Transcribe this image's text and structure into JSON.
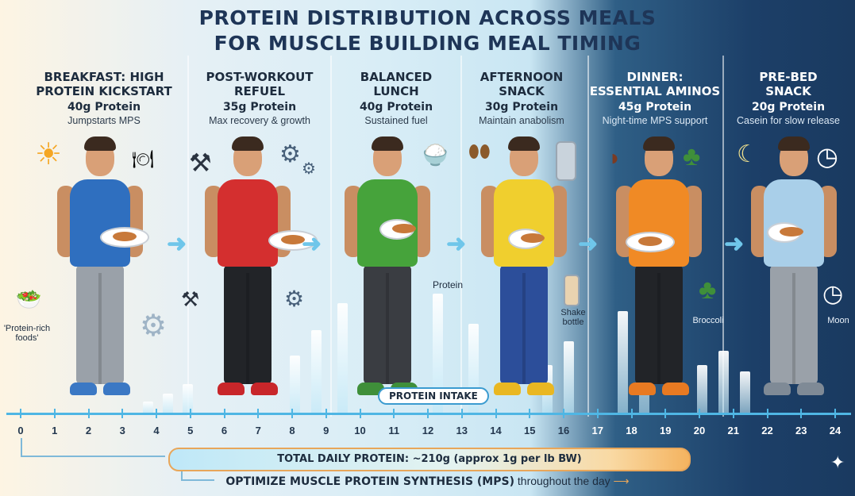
{
  "title": {
    "line1": "PROTEIN DISTRIBUTION ACROSS MEALS",
    "line2": "FOR MUSCLE BUILDING MEAL TIMING"
  },
  "meals": [
    {
      "name_line1": "BREAKFAST: HIGH",
      "name_line2": "PROTEIN KICKSTART",
      "protein": "40g Protein",
      "note": "Jumpstarts MPS",
      "protein_grams": 40,
      "shirt_color": "#2f6fbf",
      "pants_color": "#9aa1a9",
      "shoe_color": "#3b78c4"
    },
    {
      "name_line1": "POST-WORKOUT",
      "name_line2": "REFUEL",
      "protein": "35g Protein",
      "note": "Max recovery & growth",
      "protein_grams": 35,
      "shirt_color": "#d42f2f",
      "pants_color": "#222428",
      "shoe_color": "#c8262a"
    },
    {
      "name_line1": "BALANCED",
      "name_line2": "LUNCH",
      "protein": "40g Protein",
      "note": "Sustained fuel",
      "protein_grams": 40,
      "shirt_color": "#46a33b",
      "pants_color": "#3a3d42",
      "shoe_color": "#3f8f3a"
    },
    {
      "name_line1": "AFTERNOON",
      "name_line2": "SNACK",
      "protein": "30g Protein",
      "note": "Maintain anabolism",
      "protein_grams": 30,
      "shirt_color": "#f0cf2e",
      "pants_color": "#2c4e9a",
      "shoe_color": "#e9b722"
    },
    {
      "name_line1": "DINNER:",
      "name_line2": "ESSENTIAL AMINOS",
      "protein": "45g Protein",
      "note": "Night-time MPS support",
      "protein_grams": 45,
      "shirt_color": "#f08a25",
      "pants_color": "#222428",
      "shoe_color": "#e87a22"
    },
    {
      "name_line1": "PRE-BED",
      "name_line2": "SNACK",
      "protein": "20g Protein",
      "note": "Casein for slow release",
      "protein_grams": 20,
      "shirt_color": "#a9cfe9",
      "pants_color": "#9aa1a9",
      "shoe_color": "#7f8a96"
    }
  ],
  "labels": {
    "protein_rich_foods": "'Protein-rich foods'",
    "protein": "Protein",
    "shake_bottle": "Shake bottle",
    "broccoli": "Broccoli",
    "moon": "Moon",
    "protein_intake": "PROTEIN INTAKE"
  },
  "timeline": {
    "hours": [
      "0",
      "1",
      "2",
      "3",
      "4",
      "5",
      "6",
      "7",
      "8",
      "9",
      "10",
      "11",
      "12",
      "13",
      "14",
      "15",
      "16",
      "17",
      "18",
      "19",
      "20",
      "21",
      "22",
      "23",
      "24"
    ],
    "accent": "#4fb6e4"
  },
  "footer": {
    "total": "TOTAL DAILY PROTEIN: ~210g (approx 1g per lb BW)",
    "optimize_bold": "OPTIMIZE MUSCLE PROTEIN SYNTHESIS (MPS)",
    "optimize_rest": " throughout the day"
  },
  "icons": {
    "sun": "sun-icon",
    "dumbbell": "dumbbell-icon",
    "gear": "gear-icon",
    "bowl": "rice-bowl-icon",
    "almonds": "almonds-icon",
    "shaker": "shaker-icon",
    "steak": "steak-icon",
    "broccoli": "broccoli-icon",
    "clock": "clock-icon",
    "moon": "moon-icon"
  }
}
